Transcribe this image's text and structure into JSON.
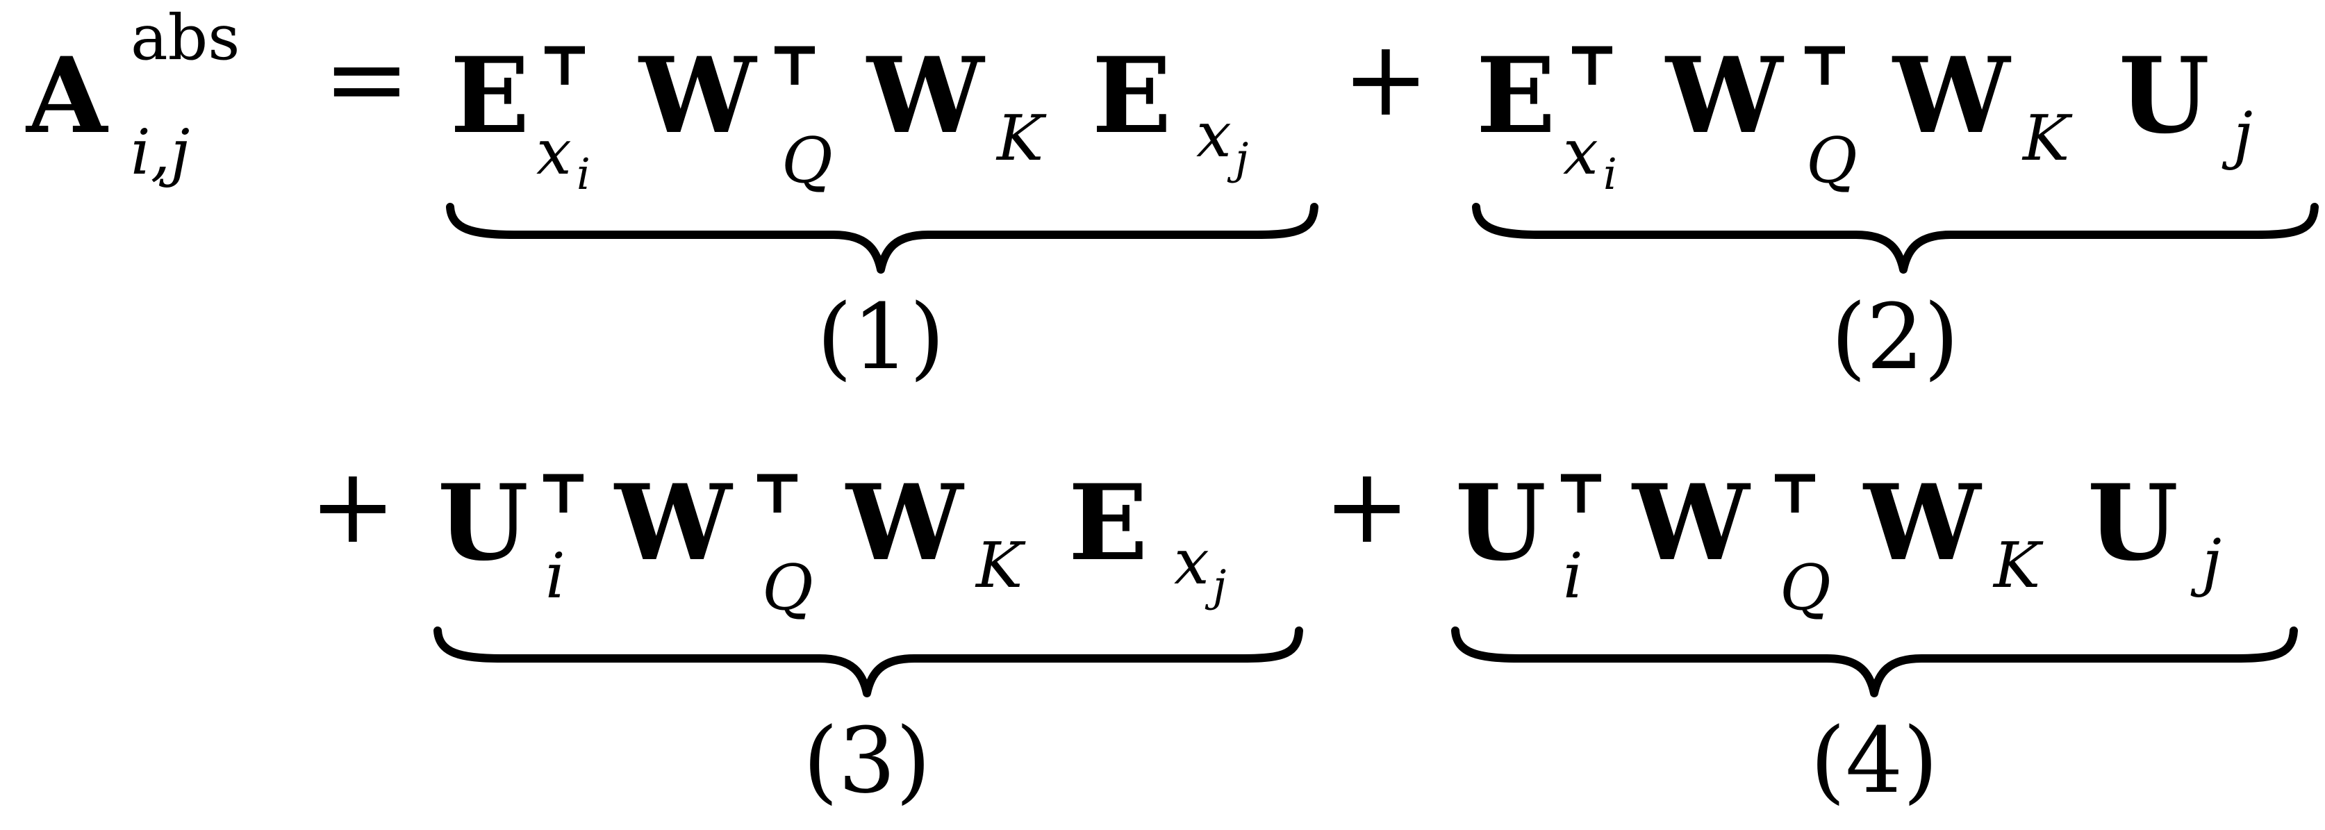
{
  "equation": {
    "lhs": {
      "base": "A",
      "superscript": "abs",
      "subscript": "i,j"
    },
    "equals": "=",
    "plus": "+",
    "terms": [
      {
        "first": {
          "base": "E",
          "sub_main": "x",
          "sub_sub": "i"
        },
        "wq": {
          "base": "W",
          "sub": "Q"
        },
        "wk": {
          "base": "W",
          "sub": "K"
        },
        "last": {
          "base": "E",
          "sub_main": "x",
          "sub_sub": "j"
        },
        "label": "(1)"
      },
      {
        "first": {
          "base": "E",
          "sub_main": "x",
          "sub_sub": "i"
        },
        "wq": {
          "base": "W",
          "sub": "Q"
        },
        "wk": {
          "base": "W",
          "sub": "K"
        },
        "last": {
          "base": "U",
          "sub_main": "j"
        },
        "label": "(2)"
      },
      {
        "first": {
          "base": "U",
          "sub_main": "i"
        },
        "wq": {
          "base": "W",
          "sub": "Q"
        },
        "wk": {
          "base": "W",
          "sub": "K"
        },
        "last": {
          "base": "E",
          "sub_main": "x",
          "sub_sub": "j"
        },
        "label": "(3)"
      },
      {
        "first": {
          "base": "U",
          "sub_main": "i"
        },
        "wq": {
          "base": "W",
          "sub": "Q"
        },
        "wk": {
          "base": "W",
          "sub": "K"
        },
        "last": {
          "base": "U",
          "sub_main": "j"
        },
        "label": "(4)"
      }
    ]
  }
}
